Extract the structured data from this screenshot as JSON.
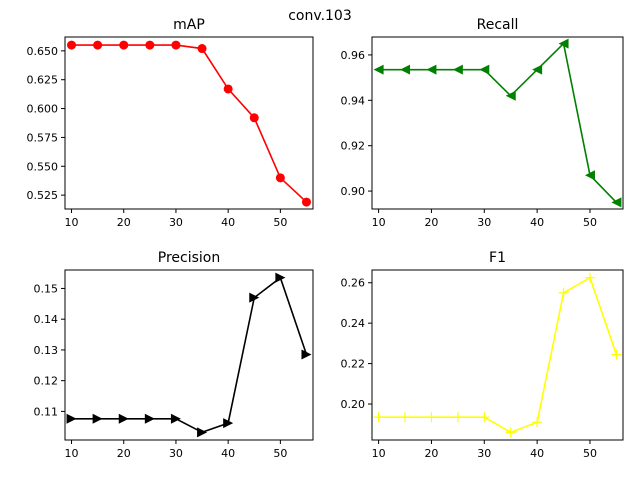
{
  "suptitle": "conv.103",
  "chart_data": [
    {
      "type": "line",
      "title": "mAP",
      "color": "#ff0000",
      "marker": "circle",
      "x": [
        10,
        15,
        20,
        25,
        30,
        35,
        40,
        45,
        50,
        55
      ],
      "y": [
        0.655,
        0.655,
        0.655,
        0.655,
        0.655,
        0.652,
        0.617,
        0.592,
        0.54,
        0.519
      ],
      "xlim": [
        8.75,
        56.25
      ],
      "ylim": [
        0.513,
        0.662
      ],
      "xticks": [
        10,
        20,
        30,
        40,
        50
      ],
      "yticks": [
        0.525,
        0.55,
        0.575,
        0.6,
        0.625,
        0.65
      ],
      "yticklabels": [
        "0.525",
        "0.550",
        "0.575",
        "0.600",
        "0.625",
        "0.650"
      ]
    },
    {
      "type": "line",
      "title": "Recall",
      "color": "#008000",
      "marker": "triangle-left",
      "x": [
        10,
        15,
        20,
        25,
        30,
        35,
        40,
        45,
        50,
        55
      ],
      "y": [
        0.9535,
        0.9535,
        0.9535,
        0.9535,
        0.9535,
        0.942,
        0.9535,
        0.965,
        0.907,
        0.895
      ],
      "xlim": [
        8.75,
        56.25
      ],
      "ylim": [
        0.8921,
        0.9679
      ],
      "xticks": [
        10,
        20,
        30,
        40,
        50
      ],
      "yticks": [
        0.9,
        0.92,
        0.94,
        0.96
      ],
      "yticklabels": [
        "0.90",
        "0.92",
        "0.94",
        "0.96"
      ]
    },
    {
      "type": "line",
      "title": "Precision",
      "color": "#000000",
      "marker": "triangle-right",
      "x": [
        10,
        15,
        20,
        25,
        30,
        35,
        40,
        45,
        50,
        55
      ],
      "y": [
        0.1076,
        0.1076,
        0.1076,
        0.1076,
        0.1076,
        0.1032,
        0.1062,
        0.147,
        0.1535,
        0.1285
      ],
      "xlim": [
        8.75,
        56.25
      ],
      "ylim": [
        0.1007,
        0.156
      ],
      "xticks": [
        10,
        20,
        30,
        40,
        50
      ],
      "yticks": [
        0.11,
        0.12,
        0.13,
        0.14,
        0.15
      ],
      "yticklabels": [
        "0.11",
        "0.12",
        "0.13",
        "0.14",
        "0.15"
      ]
    },
    {
      "type": "line",
      "title": "F1",
      "color": "#ffff00",
      "marker": "plus",
      "x": [
        10,
        15,
        20,
        25,
        30,
        35,
        40,
        45,
        50,
        55
      ],
      "y": [
        0.1935,
        0.1935,
        0.1935,
        0.1935,
        0.1935,
        0.186,
        0.191,
        0.255,
        0.2625,
        0.2245
      ],
      "xlim": [
        8.75,
        56.25
      ],
      "ylim": [
        0.1822,
        0.2663
      ],
      "xticks": [
        10,
        20,
        30,
        40,
        50
      ],
      "yticks": [
        0.2,
        0.22,
        0.24,
        0.26
      ],
      "yticklabels": [
        "0.20",
        "0.22",
        "0.24",
        "0.26"
      ]
    }
  ]
}
